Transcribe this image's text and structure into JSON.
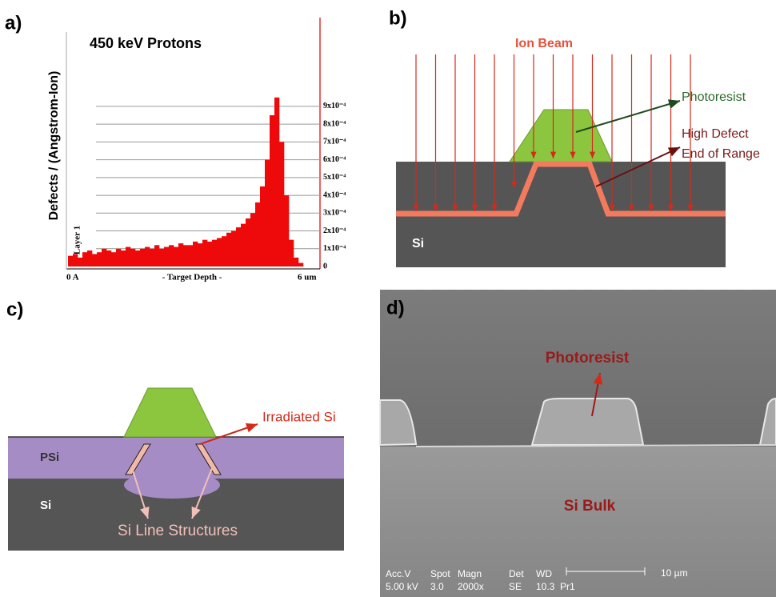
{
  "panel_a": {
    "label": "a)",
    "chart_data": {
      "type": "bar",
      "title": "450 keV Protons",
      "y_label": "Defects / (Angstrom-Ion)",
      "x_label": "- Target Depth -",
      "x_start_label": "0 A",
      "x_end_label": "6 um",
      "layer_label": "Layer 1",
      "color": "#ee0a0a",
      "ylim": [
        0,
        0.0013
      ],
      "yticks": [
        0,
        {
          "value": 0.0001,
          "label": "1x10⁻⁴"
        },
        {
          "value": 0.0002,
          "label": "2x10⁻⁴"
        },
        {
          "value": 0.0003,
          "label": "3x10⁻⁴"
        },
        {
          "value": 0.0004,
          "label": "4x10⁻⁴"
        },
        {
          "value": 0.0005,
          "label": "5x10⁻⁴"
        },
        {
          "value": 0.0006,
          "label": "6x10⁻⁴"
        },
        {
          "value": 0.0007,
          "label": "7x10⁻⁴"
        },
        {
          "value": 0.0008,
          "label": "8x10⁻⁴"
        },
        {
          "value": 0.0009,
          "label": "9x10⁻⁴"
        }
      ],
      "values": [
        6e-05,
        7e-05,
        5e-05,
        8e-05,
        9e-05,
        7e-05,
        8e-05,
        0.0001,
        9e-05,
        8e-05,
        0.0001,
        9e-05,
        0.00011,
        0.0001,
        9e-05,
        0.0001,
        0.00011,
        0.0001,
        0.00012,
        0.0001,
        0.00011,
        0.00012,
        0.00011,
        0.00013,
        0.00012,
        0.00012,
        0.00014,
        0.00013,
        0.00015,
        0.00014,
        0.00015,
        0.00016,
        0.00017,
        0.00019,
        0.0002,
        0.00022,
        0.00024,
        0.00027,
        0.0003,
        0.00036,
        0.00045,
        0.0006,
        0.00085,
        0.00095,
        0.0007,
        0.0004,
        0.00015,
        5e-05,
        2e-05,
        0
      ],
      "grid": true
    }
  },
  "panel_b": {
    "label": "b)",
    "ion_beam": "Ion Beam",
    "photoresist": "Photoresist",
    "high_defect": "High Defect",
    "end_of_range": "End of Range",
    "si": "Si"
  },
  "panel_c": {
    "label": "c)",
    "irradiated_si": "Irradiated Si",
    "psi": "PSi",
    "si": "Si",
    "si_line_structures": "Si Line Structures"
  },
  "panel_d": {
    "label": "d)",
    "photoresist": "Photoresist",
    "si_bulk": "Si Bulk",
    "footer": {
      "header": [
        "Acc.V",
        "Spot",
        "Magn",
        "Det",
        "WD"
      ],
      "values": [
        "5.00 kV",
        "3.0",
        "2000x",
        "SE",
        "10.3",
        "Pr1"
      ],
      "scale": "10 µm"
    }
  }
}
